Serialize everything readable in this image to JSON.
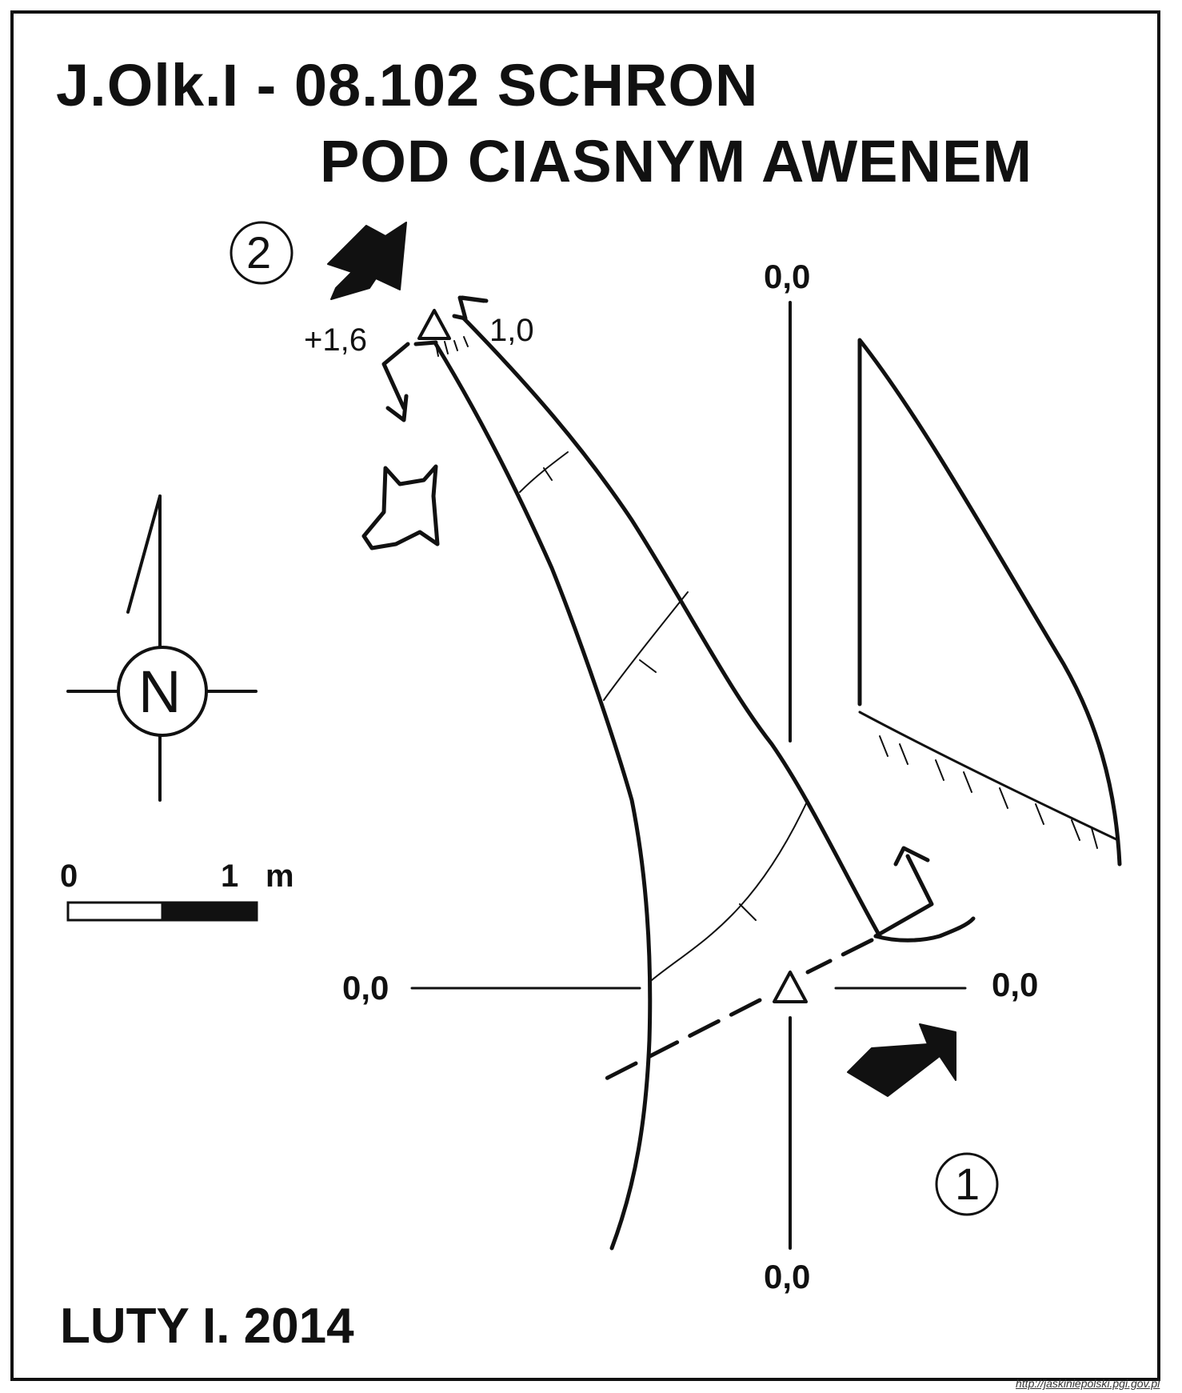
{
  "title": {
    "line1": "J.Olk.I - 08.102  SCHRON",
    "line2": "POD CIASNYM AWENEM"
  },
  "elevations": {
    "top_axis": "0,0",
    "bottom_axis": "0,0",
    "left_axis": "0,0",
    "right_axis": "0,0",
    "upper_station": "+1,6",
    "upper_ceiling": "1,0"
  },
  "entrances": {
    "entrance_1": "①",
    "entrance_2": "②"
  },
  "compass": {
    "north_label": "N"
  },
  "scale_bar": {
    "zero_label": "0",
    "one_label": "1",
    "unit_label": "m"
  },
  "footer": {
    "author_date": "LUTY I. 2014"
  },
  "source_url": "http://jaskiniepolski.pgi.gov.pl",
  "colors": {
    "ink": "#111111",
    "paper": "#ffffff"
  }
}
